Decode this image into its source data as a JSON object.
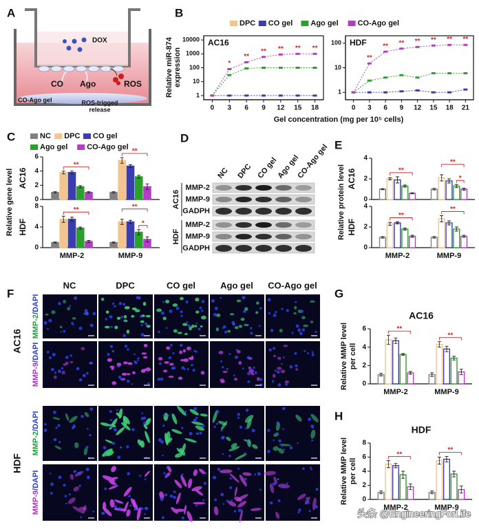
{
  "panel_labels": [
    "A",
    "B",
    "C",
    "D",
    "E",
    "F",
    "G",
    "H"
  ],
  "schematic": {
    "drug": "DOX",
    "gas": "CO",
    "agonist": "Ago",
    "ros": "ROS",
    "gel": "CO-Ago gel",
    "release": [
      "ROS-trigged",
      "release"
    ]
  },
  "blot": {
    "lanes": [
      "NC",
      "DPC",
      "CO gel",
      "Ago gel",
      "CO-Ago gel"
    ],
    "groups": [
      {
        "name": "AC16",
        "rows": [
          "MMP-2",
          "MMP-9",
          "GADPH"
        ]
      },
      {
        "name": "HDF",
        "rows": [
          "MMP-2",
          "MMP-9",
          "GADPH"
        ]
      }
    ]
  },
  "images": {
    "columns": [
      "NC",
      "DPC",
      "CO gel",
      "Ago gel",
      "CO-Ago gel"
    ],
    "groups": [
      {
        "name": "AC16",
        "rows": [
          {
            "stain": "MMP-2",
            "counterstain": "/DAPI"
          },
          {
            "stain": "MMP-9",
            "counterstain": "/DAPI"
          }
        ]
      },
      {
        "name": "HDF",
        "rows": [
          {
            "stain": "MMP-2",
            "counterstain": "/DAPI"
          },
          {
            "stain": "MMP-9",
            "counterstain": "/DAPI"
          }
        ]
      }
    ]
  },
  "watermark": "头条 @EngineeringForLife",
  "chart_data": [
    {
      "type": "line",
      "log_y": true,
      "legend": true,
      "title": "AC16",
      "ylabel": [
        "Relative miR-874",
        "expression"
      ],
      "xlabel": "Gel concentration (mg per 10⁵ cells)",
      "x": [
        0,
        3,
        6,
        9,
        12,
        15,
        18
      ],
      "xlim": [
        -1.5,
        19.5
      ],
      "xticks": [
        0,
        3,
        6,
        9,
        12,
        15,
        18
      ],
      "ylim": [
        0.5,
        20000
      ],
      "yticks": [
        1,
        10,
        100,
        1000,
        10000
      ],
      "annotation_color": "#d62728",
      "series": [
        {
          "name": "DPC",
          "color": "#f3c48e",
          "values": [
            1,
            null,
            null,
            null,
            null,
            null,
            null
          ]
        },
        {
          "name": "CO gel",
          "color": "#3a3db0",
          "values": [
            1,
            1,
            1,
            1,
            1,
            1,
            1
          ]
        },
        {
          "name": "Ago gel",
          "color": "#2ca02c",
          "values": [
            1,
            30,
            90,
            100,
            100,
            100,
            100
          ]
        },
        {
          "name": "CO-Ago gel",
          "color": "#b13fc2",
          "values": [
            1,
            80,
            250,
            600,
            900,
            1000,
            1000
          ]
        }
      ],
      "annotations": [
        {
          "x": 3,
          "text": "*"
        },
        {
          "x": 6,
          "text": "**"
        },
        {
          "x": 9,
          "text": "**"
        },
        {
          "x": 12,
          "text": "**"
        },
        {
          "x": 15,
          "text": "**"
        },
        {
          "x": 18,
          "text": "**"
        }
      ]
    },
    {
      "type": "line",
      "log_y": true,
      "title": "HDF",
      "x": [
        0,
        3,
        6,
        9,
        12,
        15,
        18,
        21
      ],
      "xlim": [
        -1.5,
        22.5
      ],
      "xticks": [
        0,
        3,
        6,
        9,
        12,
        15,
        18,
        21
      ],
      "ylim": [
        0.5,
        200
      ],
      "yticks": [
        1,
        10,
        100
      ],
      "annotation_color": "#d62728",
      "series": [
        {
          "color": "#f3c48e",
          "values": [
            1,
            null,
            null,
            null,
            null,
            null,
            null,
            null
          ]
        },
        {
          "color": "#3a3db0",
          "values": [
            1,
            1,
            1,
            1.1,
            1.2,
            1,
            1,
            1.3
          ]
        },
        {
          "color": "#2ca02c",
          "values": [
            1,
            3,
            4,
            5,
            4,
            6,
            6,
            6
          ]
        },
        {
          "color": "#b13fc2",
          "values": [
            1,
            15,
            45,
            60,
            70,
            80,
            85,
            85
          ]
        }
      ],
      "annotations": [
        {
          "x": 3,
          "text": "**"
        },
        {
          "x": 6,
          "text": "**"
        },
        {
          "x": 9,
          "text": "**"
        },
        {
          "x": 12,
          "text": "**"
        },
        {
          "x": 15,
          "text": "**"
        },
        {
          "x": 18,
          "text": "**"
        },
        {
          "x": 21,
          "text": "**"
        }
      ]
    },
    {
      "type": "bar",
      "filled": true,
      "legend": true,
      "title": "AC16",
      "ylabel": "Relative gene level",
      "ylim": [
        0,
        6
      ],
      "yticks": [
        0,
        2,
        4,
        6
      ],
      "series": [
        {
          "name": "NC",
          "color": "#808080",
          "values": [
            1,
            1
          ],
          "errors": [
            0.1,
            0.1
          ]
        },
        {
          "name": "DPC",
          "color": "#f3c48e",
          "values": [
            3.8,
            5.5
          ],
          "errors": [
            0.2,
            0.4
          ]
        },
        {
          "name": "CO gel",
          "color": "#3a3db0",
          "values": [
            3.8,
            4.7
          ],
          "errors": [
            0.2,
            0.2
          ]
        },
        {
          "name": "Ago gel",
          "color": "#2ca02c",
          "values": [
            1.8,
            3.2
          ],
          "errors": [
            0.15,
            0.2
          ]
        },
        {
          "name": "CO-Ago gel",
          "color": "#b13fc2",
          "values": [
            1.0,
            1.8
          ],
          "errors": [
            0.1,
            0.4
          ]
        }
      ],
      "brackets": [
        {
          "category": 0,
          "from": 1,
          "to": 4,
          "text": "**"
        },
        {
          "category": 1,
          "from": 1,
          "to": 4,
          "text": "**"
        }
      ]
    },
    {
      "type": "bar",
      "filled": true,
      "title": "HDF",
      "categories": [
        "MMP-2",
        "MMP-9"
      ],
      "ylim": [
        0,
        8
      ],
      "yticks": [
        0,
        4,
        8
      ],
      "series": [
        {
          "color": "#808080",
          "values": [
            1,
            1
          ],
          "errors": [
            0.1,
            0.1
          ]
        },
        {
          "color": "#f3c48e",
          "values": [
            5.5,
            5
          ],
          "errors": [
            0.6,
            0.5
          ]
        },
        {
          "color": "#3a3db0",
          "values": [
            5.5,
            5
          ],
          "errors": [
            0.4,
            0.3
          ]
        },
        {
          "color": "#2ca02c",
          "values": [
            3.8,
            3
          ],
          "errors": [
            0.2,
            0.5
          ]
        },
        {
          "color": "#b13fc2",
          "values": [
            1.2,
            1.6
          ],
          "errors": [
            0.2,
            0.5
          ]
        }
      ],
      "brackets": [
        {
          "category": 0,
          "from": 1,
          "to": 4,
          "text": "**"
        },
        {
          "category": 1,
          "from": 3,
          "to": 4,
          "text": "*"
        },
        {
          "category": 1,
          "from": 1,
          "to": 4,
          "text": "**"
        }
      ]
    },
    {
      "type": "bar",
      "filled": false,
      "title": "AC16",
      "ylabel": "Relative protein level",
      "ylim": [
        0,
        4
      ],
      "yticks": [
        0,
        2,
        4
      ],
      "series": [
        {
          "color": "#808080",
          "values": [
            1,
            1
          ],
          "errors": [
            0.05,
            0.08
          ]
        },
        {
          "color": "#f3c48e",
          "values": [
            2,
            2.1
          ],
          "errors": [
            0.1,
            0.3
          ]
        },
        {
          "color": "#3a3db0",
          "values": [
            1.9,
            1.8
          ],
          "errors": [
            0.3,
            0.2
          ]
        },
        {
          "color": "#2ca02c",
          "values": [
            1.3,
            1.3
          ],
          "errors": [
            0.1,
            0.15
          ]
        },
        {
          "color": "#b13fc2",
          "values": [
            0.6,
            1.0
          ],
          "errors": [
            0.05,
            0.1
          ]
        }
      ],
      "brackets": [
        {
          "category": 0,
          "from": 1,
          "to": 4,
          "text": "**"
        },
        {
          "category": 1,
          "from": 3,
          "to": 4,
          "text": "*"
        },
        {
          "category": 1,
          "from": 1,
          "to": 4,
          "text": "**"
        }
      ]
    },
    {
      "type": "bar",
      "filled": false,
      "title": "HDF",
      "categories": [
        "MMP-2",
        "MMP-9"
      ],
      "ylim": [
        0,
        4
      ],
      "yticks": [
        0,
        2,
        4
      ],
      "series": [
        {
          "color": "#808080",
          "values": [
            1,
            1
          ],
          "errors": [
            0.08,
            0.08
          ]
        },
        {
          "color": "#f3c48e",
          "values": [
            2.3,
            2.8
          ],
          "errors": [
            0.15,
            0.3
          ]
        },
        {
          "color": "#3a3db0",
          "values": [
            2.4,
            2.4
          ],
          "errors": [
            0.1,
            0.2
          ]
        },
        {
          "color": "#2ca02c",
          "values": [
            1.8,
            1.8
          ],
          "errors": [
            0.1,
            0.2
          ]
        },
        {
          "color": "#b13fc2",
          "values": [
            1.1,
            1.1
          ],
          "errors": [
            0.1,
            0.1
          ]
        }
      ],
      "brackets": [
        {
          "category": 0,
          "from": 1,
          "to": 4,
          "text": "**"
        },
        {
          "category": 1,
          "from": 1,
          "to": 4,
          "text": "**"
        }
      ]
    },
    {
      "type": "bar",
      "filled": false,
      "title": "AC16",
      "ylabel": [
        "Relative MMP level",
        "per cell"
      ],
      "categories": [
        "MMP-2",
        "MMP-9"
      ],
      "ylim": [
        0,
        6
      ],
      "yticks": [
        0,
        2,
        4,
        6
      ],
      "series": [
        {
          "color": "#808080",
          "values": [
            1,
            1
          ],
          "errors": [
            0.15,
            0.2
          ]
        },
        {
          "color": "#f3c48e",
          "values": [
            4.8,
            4.3
          ],
          "errors": [
            0.5,
            0.3
          ]
        },
        {
          "color": "#3a3db0",
          "values": [
            4.7,
            3.8
          ],
          "errors": [
            0.3,
            0.3
          ]
        },
        {
          "color": "#2ca02c",
          "values": [
            3.2,
            2.8
          ],
          "errors": [
            0.1,
            0.2
          ]
        },
        {
          "color": "#b13fc2",
          "values": [
            1.2,
            1.3
          ],
          "errors": [
            0.15,
            0.3
          ]
        }
      ],
      "brackets": [
        {
          "category": 0,
          "from": 1,
          "to": 4,
          "text": "**"
        },
        {
          "category": 1,
          "from": 1,
          "to": 4,
          "text": "**"
        }
      ]
    },
    {
      "type": "bar",
      "filled": false,
      "title": "HDF",
      "ylabel": [
        "Relative MMP level",
        "per cell"
      ],
      "categories": [
        "MMP-2",
        "MMP-9"
      ],
      "ylim": [
        0,
        8
      ],
      "yticks": [
        0,
        2,
        4,
        6,
        8
      ],
      "series": [
        {
          "color": "#808080",
          "values": [
            1,
            1
          ],
          "errors": [
            0.2,
            0.2
          ]
        },
        {
          "color": "#f3c48e",
          "values": [
            5,
            5.5
          ],
          "errors": [
            0.5,
            0.5
          ]
        },
        {
          "color": "#3a3db0",
          "values": [
            4.8,
            5.7
          ],
          "errors": [
            0.3,
            0.4
          ]
        },
        {
          "color": "#2ca02c",
          "values": [
            3.5,
            3.6
          ],
          "errors": [
            0.5,
            0.4
          ]
        },
        {
          "color": "#b13fc2",
          "values": [
            1.8,
            1.4
          ],
          "errors": [
            0.4,
            0.5
          ]
        }
      ],
      "brackets": [
        {
          "category": 0,
          "from": 1,
          "to": 4,
          "text": "**"
        },
        {
          "category": 1,
          "from": 1,
          "to": 4,
          "text": "**"
        }
      ]
    }
  ]
}
